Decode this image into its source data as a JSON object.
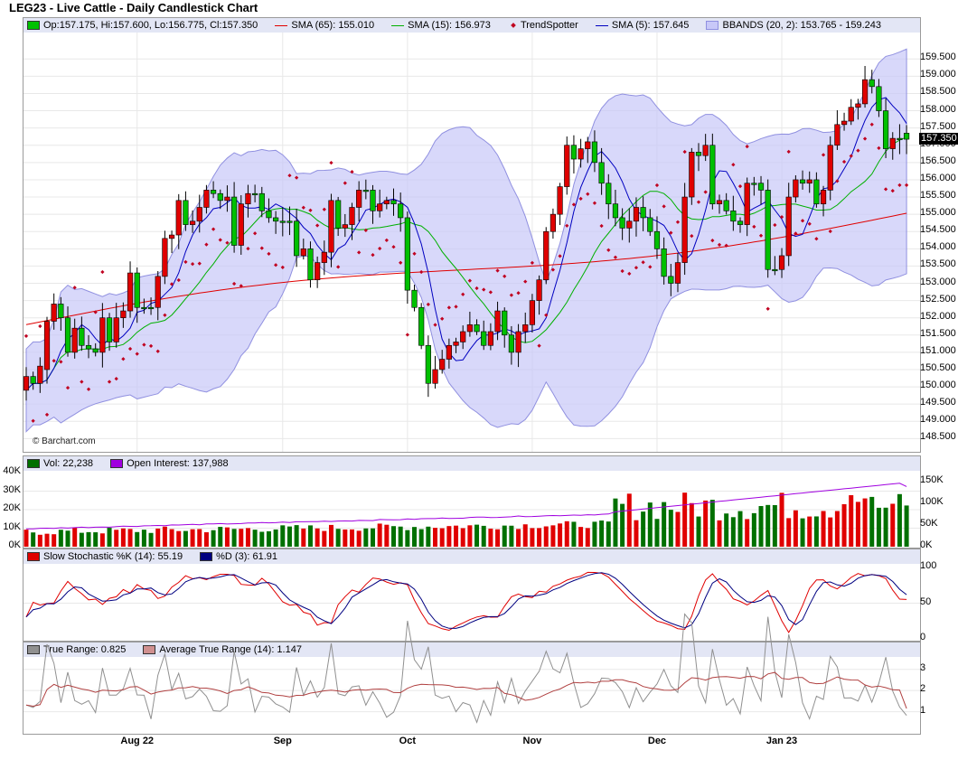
{
  "title": "LEG23 - Live Cattle - Daily Candlestick Chart",
  "copyright": "© Barchart.com",
  "last_price_badge": "157.350",
  "colors": {
    "up": "#00c000",
    "down": "#e00000",
    "bb_fill": "#c8c8f8",
    "bb_line": "#9090e0",
    "sma65": "#e00000",
    "sma15": "#00b000",
    "sma5": "#0000c0",
    "trendspotter": "#c00020",
    "vol_up": "#007000",
    "vol_down": "#e00000",
    "open_interest": "#a000e0",
    "stoch_k": "#e00000",
    "stoch_d": "#000080",
    "true_range": "#909090",
    "atr": "#b04040",
    "legend_bg": "#e3e6f5"
  },
  "price_legend": {
    "ohlc": "Op:157.175, Hi:157.600, Lo:156.775, Cl:157.350",
    "sma65": "SMA (65): 155.010",
    "sma15": "SMA (15): 156.973",
    "trendspotter": "TrendSpotter",
    "sma5": "SMA (5): 157.645",
    "bbands": "BBANDS (20, 2): 153.765 - 159.243"
  },
  "volume_legend": {
    "vol": "Vol: 22,238",
    "oi": "Open Interest: 137,988"
  },
  "stoch_legend": {
    "k": "Slow Stochastic %K (14): 55.19",
    "d": "%D (3): 61.91"
  },
  "tr_legend": {
    "tr": "True Range: 0.825",
    "atr": "Average True Range (14): 1.147"
  },
  "x_ticks": [
    "Aug 22",
    "Sep",
    "Oct",
    "Nov",
    "Dec",
    "Jan 23"
  ],
  "price_ticks": [
    "159.500",
    "159.000",
    "158.500",
    "158.000",
    "157.500",
    "157.000",
    "156.500",
    "156.000",
    "155.500",
    "155.000",
    "154.500",
    "154.000",
    "153.500",
    "153.000",
    "152.500",
    "152.000",
    "151.500",
    "151.000",
    "150.500",
    "150.000",
    "149.500",
    "149.000",
    "148.500"
  ],
  "volume_ticks_left": [
    "40K",
    "30K",
    "20K",
    "10K",
    "0K"
  ],
  "volume_ticks_right": [
    "150K",
    "100K",
    "50K",
    "0K"
  ],
  "stoch_ticks": [
    "100",
    "50",
    "0"
  ],
  "tr_ticks": [
    "3",
    "2",
    "1"
  ],
  "chart_data": {
    "type": "candlestick",
    "ylim": [
      148.3,
      159.9
    ],
    "x_tick_index": [
      16,
      37,
      55,
      73,
      91,
      109
    ],
    "closes": [
      149.9,
      150.3,
      150.1,
      150.5,
      151.9,
      152.4,
      152.0,
      151.0,
      151.7,
      151.2,
      151.1,
      151.0,
      152.0,
      151.3,
      152.0,
      152.2,
      153.3,
      152.3,
      152.3,
      152.3,
      153.2,
      154.3,
      154.4,
      155.4,
      154.7,
      154.8,
      155.2,
      155.7,
      155.6,
      155.4,
      155.5,
      154.1,
      155.3,
      155.6,
      155.6,
      155.1,
      154.9,
      154.8,
      154.8,
      154.8,
      153.8,
      154.0,
      153.1,
      153.6,
      153.9,
      155.4,
      154.6,
      154.7,
      155.2,
      155.7,
      155.7,
      155.1,
      155.3,
      155.4,
      155.3,
      154.9,
      152.8,
      152.3,
      151.2,
      150.1,
      150.5,
      150.8,
      151.2,
      151.3,
      151.6,
      151.8,
      151.6,
      151.2,
      151.6,
      152.2,
      151.5,
      151.0,
      151.6,
      151.8,
      152.5,
      153.1,
      154.5,
      155.0,
      155.8,
      157.0,
      156.6,
      156.9,
      157.1,
      156.5,
      155.9,
      155.3,
      154.9,
      154.6,
      154.8,
      155.2,
      154.9,
      154.5,
      154.0,
      153.2,
      153.0,
      153.6,
      155.5,
      156.8,
      156.7,
      157.0,
      155.3,
      155.4,
      155.1,
      154.8,
      154.7,
      155.9,
      155.9,
      155.7,
      153.4,
      153.4,
      153.8,
      155.5,
      156.0,
      155.9,
      156.0,
      155.3,
      155.7,
      157.0,
      157.6,
      157.7,
      158.1,
      158.2,
      158.9,
      158.7,
      158.0,
      156.9,
      157.2,
      157.35
    ],
    "opens": [
      150.3,
      150.1,
      150.6,
      151.9,
      152.4,
      152.0,
      151.0,
      151.7,
      151.2,
      151.1,
      151.0,
      152.0,
      151.3,
      152.0,
      152.2,
      153.3,
      152.3,
      152.3,
      152.3,
      153.2,
      154.3,
      154.4,
      155.4,
      154.7,
      154.8,
      155.2,
      155.7,
      155.6,
      155.4,
      155.5,
      154.1,
      155.3,
      155.6,
      155.6,
      155.1,
      154.9,
      154.8,
      154.8,
      154.8,
      153.8,
      154.0,
      153.1,
      153.6,
      153.9,
      155.4,
      154.6,
      154.7,
      155.2,
      155.7,
      155.7,
      155.1,
      155.3,
      155.4,
      155.3,
      154.9,
      152.8,
      152.3,
      151.2,
      150.1,
      150.5,
      150.8,
      151.2,
      151.3,
      151.6,
      151.8,
      151.6,
      151.2,
      151.6,
      152.2,
      151.5,
      151.0,
      151.6,
      151.8,
      152.5,
      153.1,
      154.5,
      155.0,
      155.8,
      157.0,
      156.6,
      156.9,
      157.1,
      156.5,
      155.9,
      155.3,
      154.9,
      154.6,
      154.8,
      155.2,
      154.9,
      154.5,
      154.0,
      153.2,
      153.0,
      153.6,
      155.5,
      156.8,
      156.7,
      157.0,
      155.3,
      155.4,
      155.1,
      154.8,
      154.7,
      155.9,
      155.9,
      155.7,
      153.4,
      153.4,
      153.8,
      155.5,
      156.0,
      155.9,
      156.0,
      155.3,
      155.7,
      157.0,
      157.6,
      157.7,
      158.1,
      158.2,
      158.9,
      158.7,
      158.0,
      156.9,
      157.2,
      157.175,
      157.175
    ],
    "sma65_start": 151.8,
    "sma65_end": 155.01,
    "bb_upper_end": 159.243,
    "bb_lower_end": 153.765,
    "volume_ylim": [
      0,
      40000
    ],
    "oi_ylim": [
      0,
      170000
    ],
    "stoch_ylim": [
      0,
      100
    ],
    "stoch_k_last": 55.19,
    "stoch_d_last": 61.91,
    "tr_ylim": [
      0,
      3.5
    ],
    "tr_last": 0.825,
    "atr_last": 1.147
  }
}
